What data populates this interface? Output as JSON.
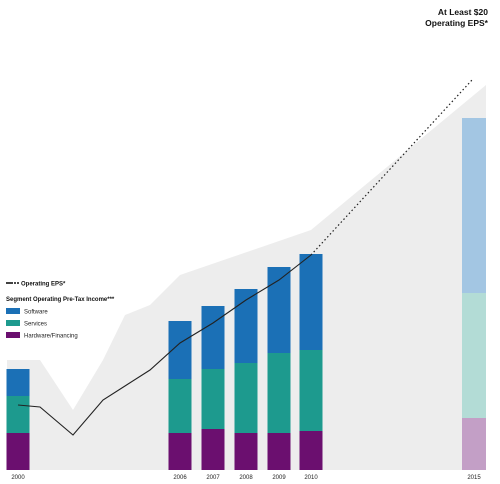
{
  "chart_data": {
    "type": "bar",
    "stacked": true,
    "categories": [
      "2000",
      "2006",
      "2007",
      "2008",
      "2009",
      "2010",
      "2015"
    ],
    "series": [
      {
        "name": "Hardware/Financing",
        "color": "#6b0f6f",
        "faded_color": "#c39fc6",
        "values": [
          37,
          37,
          41,
          37,
          37,
          39,
          52
        ]
      },
      {
        "name": "Services",
        "color": "#1d9a8e",
        "faded_color": "#b3dcd6",
        "values": [
          37,
          54,
          60,
          70,
          80,
          81,
          125
        ]
      },
      {
        "name": "Software",
        "color": "#1b70b6",
        "faded_color": "#a3c6e3",
        "values": [
          27,
          58,
          63,
          74,
          86,
          96,
          175
        ]
      }
    ],
    "faded_categories": [
      "2015"
    ],
    "eps_line": {
      "label": "Operating EPS*",
      "solid_points": [
        {
          "x": "2000",
          "y": 65
        },
        {
          "x": "2001",
          "y": 63
        },
        {
          "x": "2002",
          "y": 35
        },
        {
          "x": "2003",
          "y": 70
        },
        {
          "x": "2005",
          "y": 100
        },
        {
          "x": "2006",
          "y": 127
        },
        {
          "x": "2007",
          "y": 147
        },
        {
          "x": "2008",
          "y": 170
        },
        {
          "x": "2009",
          "y": 190
        },
        {
          "x": "2010",
          "y": 215
        }
      ],
      "projected_points": [
        {
          "x": "2010",
          "y": 215
        },
        {
          "x": "2015",
          "y": 390
        }
      ],
      "callout": [
        "At Least $20",
        "Operating EPS*"
      ]
    },
    "background_area_label": "",
    "legend": {
      "title": "Segment Operating Pre-Tax Income***",
      "items": [
        "Software",
        "Services",
        "Hardware/Financing"
      ],
      "placement": "left-middle"
    },
    "ylim": [
      0,
      400
    ],
    "grid": false
  },
  "colors": {
    "background_area": "#ededed",
    "eps_line": "#222222"
  }
}
